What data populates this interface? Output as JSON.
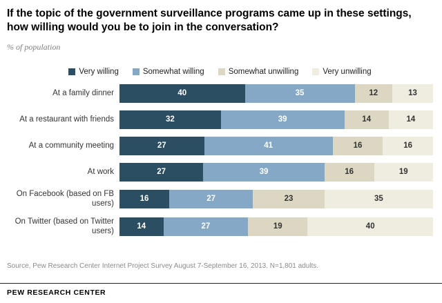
{
  "title": "If the topic of the government surveillance programs came up in these settings, how willing would you be to join in the conversation?",
  "subtitle": "% of population",
  "source": "Source, Pew Research Center Internet Project Survey August 7-September 16, 2013. N=1,801 adults.",
  "footer": "PEW RESEARCH CENTER",
  "colors": {
    "very_willing": "#2b4e63",
    "somewhat_willing": "#84a8c6",
    "somewhat_unwilling": "#dcd7c2",
    "very_unwilling": "#efece0"
  },
  "chart_data": {
    "type": "bar",
    "stacked": true,
    "orientation": "horizontal",
    "title": "If the topic of the government surveillance programs came up in these settings, how willing would you be to join in the conversation?",
    "xlabel": "",
    "ylabel": "",
    "xlim": [
      0,
      100
    ],
    "grid": false,
    "legend_position": "top",
    "categories": [
      "At a family dinner",
      "At a restaurant with friends",
      "At a community meeting",
      "At work",
      "On Facebook (based on FB users)",
      "On Twitter (based on Twitter users)"
    ],
    "series": [
      {
        "name": "Very willing",
        "color": "#2b4e63",
        "text_color": "#ffffff",
        "values": [
          40,
          32,
          27,
          27,
          16,
          14
        ]
      },
      {
        "name": "Somewhat willing",
        "color": "#84a8c6",
        "text_color": "#ffffff",
        "values": [
          35,
          39,
          41,
          39,
          27,
          27
        ]
      },
      {
        "name": "Somewhat unwilling",
        "color": "#dcd7c2",
        "text_color": "#333333",
        "values": [
          12,
          14,
          16,
          16,
          23,
          19
        ]
      },
      {
        "name": "Very unwilling",
        "color": "#efece0",
        "text_color": "#333333",
        "values": [
          13,
          14,
          16,
          19,
          35,
          40
        ]
      }
    ]
  }
}
